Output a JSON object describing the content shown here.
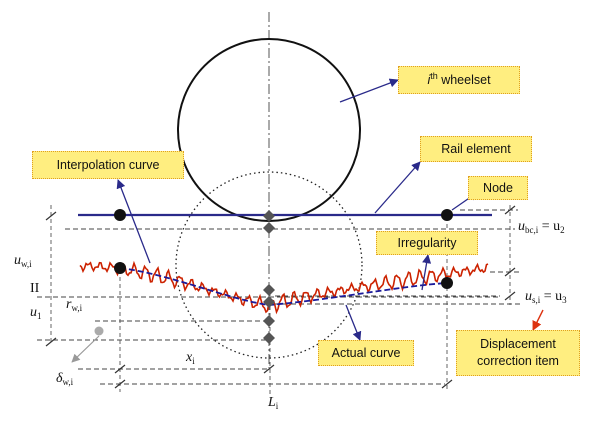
{
  "labels": {
    "wheelset_italic": "i",
    "wheelset_sup": "th",
    "wheelset_rest": " wheelset",
    "rail_element": "Rail element",
    "interpolation_curve": "Interpolation curve",
    "node": "Node",
    "irregularity": "Irregularity",
    "actual_curve": "Actual curve",
    "displacement_line1": "Displacement",
    "displacement_line2": "correction item"
  },
  "symbols": {
    "u_bc": {
      "base": "u",
      "sub": "bc,i",
      "eq": " = u",
      "eq_sub": "2"
    },
    "u_s": {
      "base": "u",
      "sub": "s,i",
      "eq": " = u",
      "eq_sub": "3"
    },
    "u_w": {
      "base": "u",
      "sub": "w,i"
    },
    "II": "II",
    "u1": {
      "base": "u",
      "sub": "1"
    },
    "r_w": {
      "base": "r",
      "sub": "w,i"
    },
    "delta_w": {
      "base": "δ",
      "sub": "w,i"
    },
    "x_i": {
      "base": "x",
      "sub": "i"
    },
    "L_i": {
      "base": "L",
      "sub": "i"
    }
  },
  "colors": {
    "rail": "#2a2a8a",
    "interpolation": "#1a1a9a",
    "actual": "#cc2200",
    "callout_bg": "#ffee80",
    "callout_border": "#e0a020",
    "arrow": "#2a2a8a",
    "arrow_red": "#dd3311",
    "node": "#111111",
    "marker": "#555555"
  }
}
